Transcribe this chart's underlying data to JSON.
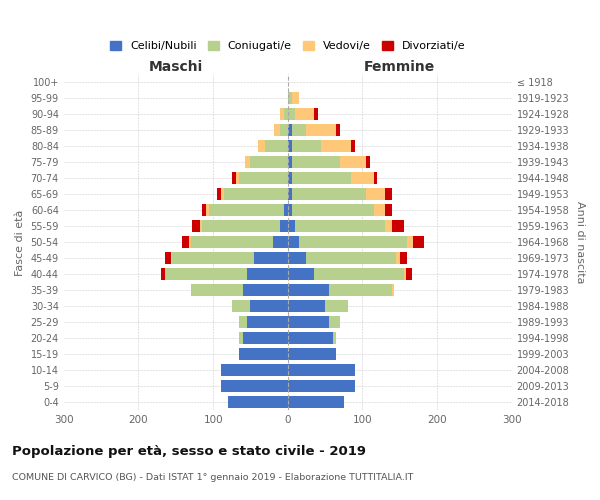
{
  "age_groups": [
    "0-4",
    "5-9",
    "10-14",
    "15-19",
    "20-24",
    "25-29",
    "30-34",
    "35-39",
    "40-44",
    "45-49",
    "50-54",
    "55-59",
    "60-64",
    "65-69",
    "70-74",
    "75-79",
    "80-84",
    "85-89",
    "90-94",
    "95-99",
    "100+"
  ],
  "birth_years": [
    "2014-2018",
    "2009-2013",
    "2004-2008",
    "1999-2003",
    "1994-1998",
    "1989-1993",
    "1984-1988",
    "1979-1983",
    "1974-1978",
    "1969-1973",
    "1964-1968",
    "1959-1963",
    "1954-1958",
    "1949-1953",
    "1944-1948",
    "1939-1943",
    "1934-1938",
    "1929-1933",
    "1924-1928",
    "1919-1923",
    "≤ 1918"
  ],
  "males": {
    "celibi": [
      80,
      90,
      90,
      65,
      60,
      55,
      50,
      60,
      55,
      45,
      20,
      10,
      5,
      0,
      0,
      0,
      0,
      0,
      0,
      0,
      0
    ],
    "coniugati": [
      0,
      0,
      0,
      0,
      5,
      10,
      25,
      70,
      110,
      110,
      110,
      105,
      100,
      85,
      65,
      50,
      30,
      10,
      5,
      0,
      0
    ],
    "vedovi": [
      0,
      0,
      0,
      0,
      0,
      0,
      0,
      0,
      0,
      2,
      2,
      3,
      5,
      5,
      5,
      8,
      10,
      8,
      5,
      0,
      0
    ],
    "divorziati": [
      0,
      0,
      0,
      0,
      0,
      0,
      0,
      0,
      5,
      8,
      10,
      10,
      5,
      5,
      5,
      0,
      0,
      0,
      0,
      0,
      0
    ]
  },
  "females": {
    "nubili": [
      75,
      90,
      90,
      65,
      60,
      55,
      50,
      55,
      35,
      25,
      15,
      10,
      5,
      5,
      5,
      5,
      5,
      5,
      0,
      0,
      0
    ],
    "coniugate": [
      0,
      0,
      0,
      0,
      5,
      15,
      30,
      85,
      120,
      120,
      145,
      120,
      110,
      100,
      80,
      65,
      40,
      20,
      10,
      5,
      0
    ],
    "vedove": [
      0,
      0,
      0,
      0,
      0,
      0,
      0,
      2,
      3,
      5,
      8,
      10,
      15,
      25,
      30,
      35,
      40,
      40,
      25,
      10,
      0
    ],
    "divorziate": [
      0,
      0,
      0,
      0,
      0,
      0,
      0,
      0,
      8,
      10,
      15,
      15,
      10,
      10,
      5,
      5,
      5,
      5,
      5,
      0,
      0
    ]
  },
  "colors": {
    "celibi_nubili": "#4472c4",
    "coniugati": "#b8d08d",
    "vedovi": "#ffc878",
    "divorziati": "#cc0000"
  },
  "title": "Popolazione per età, sesso e stato civile - 2019",
  "subtitle": "COMUNE DI CARVICO (BG) - Dati ISTAT 1° gennaio 2019 - Elaborazione TUTTITALIA.IT",
  "xlabel_left": "Maschi",
  "xlabel_right": "Femmine",
  "ylabel_left": "Fasce di età",
  "ylabel_right": "Anni di nascita",
  "xlim": 300,
  "legend_labels": [
    "Celibi/Nubili",
    "Coniugati/e",
    "Vedovi/e",
    "Divorziati/e"
  ],
  "bg_color": "#ffffff",
  "grid_color": "#cccccc"
}
